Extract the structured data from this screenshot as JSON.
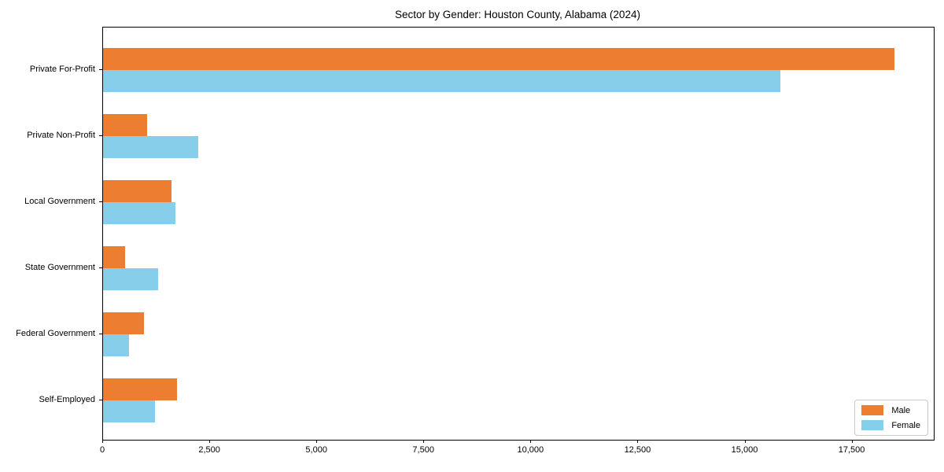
{
  "figure": {
    "title": "Sector by Gender: Houston County, Alabama (2024)"
  },
  "chart_data": {
    "type": "bar",
    "orientation": "horizontal",
    "title": "Sector by Gender: Houston County, Alabama (2024)",
    "categories": [
      "Private For-Profit",
      "Private Non-Profit",
      "Local Government",
      "State Government",
      "Federal Government",
      "Self-Employed"
    ],
    "series": [
      {
        "name": "Male",
        "color": "#ed7d31",
        "values": [
          18480,
          1030,
          1590,
          510,
          950,
          1720
        ]
      },
      {
        "name": "Female",
        "color": "#87ceeb",
        "values": [
          15820,
          2220,
          1690,
          1290,
          600,
          1210
        ]
      }
    ],
    "xlabel": "",
    "ylabel": "",
    "xlim": [
      0,
      19400
    ],
    "x_ticks": [
      {
        "value": 0,
        "label": "0"
      },
      {
        "value": 2500,
        "label": "2,500"
      },
      {
        "value": 5000,
        "label": "5,000"
      },
      {
        "value": 7500,
        "label": "7,500"
      },
      {
        "value": 10000,
        "label": "10,000"
      },
      {
        "value": 12500,
        "label": "12,500"
      },
      {
        "value": 15000,
        "label": "15,000"
      },
      {
        "value": 17500,
        "label": "17,500"
      }
    ],
    "grid": false,
    "legend_position": "lower right"
  }
}
